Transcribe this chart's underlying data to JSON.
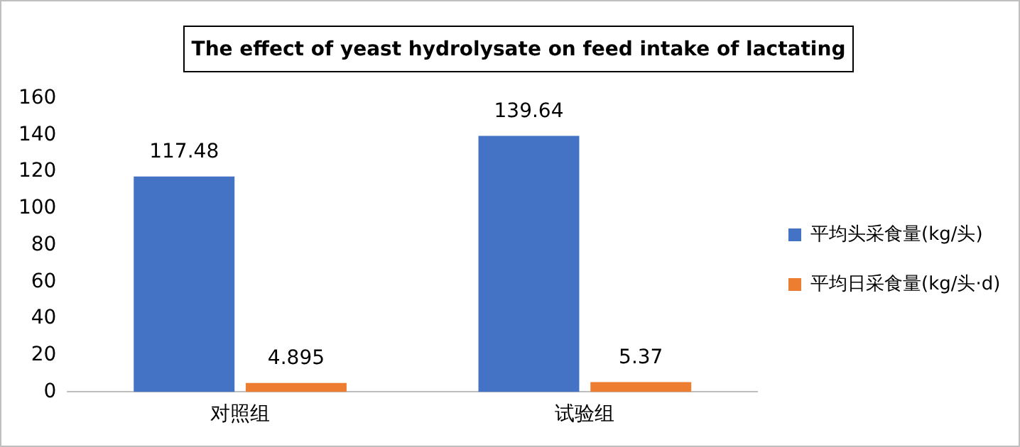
{
  "chart_data": {
    "type": "bar",
    "title": "The effect of yeast hydrolysate on feed intake of lactating",
    "categories": [
      "对照组",
      "试验组"
    ],
    "series": [
      {
        "name": "平均头采食量(kg/头)",
        "color": "#4472c4",
        "values": [
          117.48,
          139.64
        ]
      },
      {
        "name": "平均日采食量(kg/头·d)",
        "color": "#ed7d31",
        "values": [
          4.895,
          5.37
        ]
      }
    ],
    "ylim": [
      0,
      160
    ],
    "yticks": [
      0,
      20,
      40,
      60,
      80,
      100,
      120,
      140,
      160
    ],
    "grid": false,
    "legend": "right",
    "data_labels": true
  }
}
